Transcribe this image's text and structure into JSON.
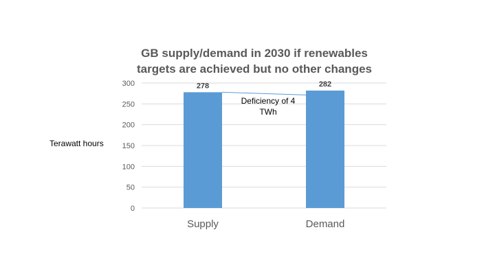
{
  "chart_data": {
    "type": "bar",
    "title_lines": [
      "GB supply/demand in 2030 if renewables",
      "targets are achieved but no other changes"
    ],
    "categories": [
      "Supply",
      "Demand"
    ],
    "values": [
      278,
      282
    ],
    "data_labels": [
      "278",
      "282"
    ],
    "ylabel": "Terawatt hours",
    "xlabel": "",
    "ylim": [
      0,
      300
    ],
    "yticks": [
      0,
      50,
      100,
      150,
      200,
      250,
      300
    ],
    "ytick_labels": [
      "0",
      "50",
      "100",
      "150",
      "200",
      "250",
      "300"
    ],
    "grid": true,
    "bar_color": "#5b9bd5",
    "connector_color": "#5b9bd5",
    "annotation_lines": [
      "Deficiency of 4",
      "TWh"
    ]
  }
}
